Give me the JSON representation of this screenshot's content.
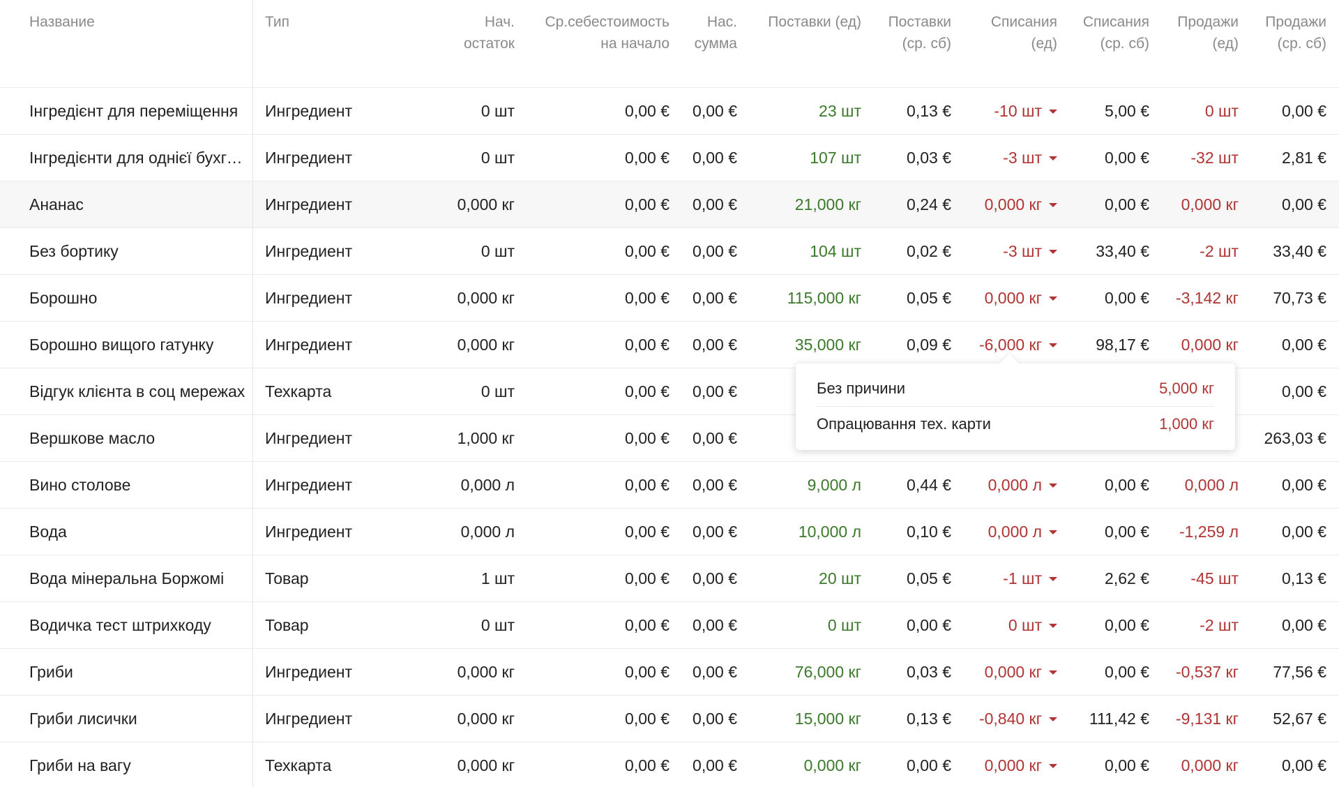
{
  "columns": {
    "name": "Название",
    "type": "Тип",
    "start_qty": [
      "Нач.",
      "остаток"
    ],
    "avg_cost": [
      "Ср.себестоимость",
      "на начало"
    ],
    "start_sum": [
      "Нас.",
      "сумма"
    ],
    "supplies_qty": [
      "Поставки (ед)",
      ""
    ],
    "supplies_cost": [
      "Поставки",
      "(ср. сб)"
    ],
    "writeoffs_qty": [
      "Списания",
      "(ед)"
    ],
    "writeoffs_cost": [
      "Списания",
      "(ср. сб)"
    ],
    "sales_qty": [
      "Продажи",
      "(ед)"
    ],
    "sales_cost": [
      "Продажи",
      "(ср. сб)"
    ]
  },
  "rows": [
    {
      "name": "Інгредієнт для переміщення",
      "type": "Ингредиент",
      "start_qty": "0 шт",
      "avg_cost": "0,00 €",
      "start_sum": "0,00 €",
      "supplies_qty": "23 шт",
      "supplies_cost": "0,13 €",
      "writeoffs_qty": "-10 шт",
      "writeoffs_cost": "5,00 €",
      "sales_qty": "0 шт",
      "sales_cost": "0,00 €"
    },
    {
      "name": "Інгредієнти для однієї бухгалтерії",
      "type": "Ингредиент",
      "start_qty": "0 шт",
      "avg_cost": "0,00 €",
      "start_sum": "0,00 €",
      "supplies_qty": "107 шт",
      "supplies_cost": "0,03 €",
      "writeoffs_qty": "-3 шт",
      "writeoffs_cost": "0,00 €",
      "sales_qty": "-32 шт",
      "sales_cost": "2,81 €"
    },
    {
      "name": "Ананас",
      "type": "Ингредиент",
      "start_qty": "0,000 кг",
      "avg_cost": "0,00 €",
      "start_sum": "0,00 €",
      "supplies_qty": "21,000 кг",
      "supplies_cost": "0,24 €",
      "writeoffs_qty": "0,000 кг",
      "writeoffs_cost": "0,00 €",
      "sales_qty": "0,000 кг",
      "sales_cost": "0,00 €"
    },
    {
      "name": "Без бортику",
      "type": "Ингредиент",
      "start_qty": "0 шт",
      "avg_cost": "0,00 €",
      "start_sum": "0,00 €",
      "supplies_qty": "104 шт",
      "supplies_cost": "0,02 €",
      "writeoffs_qty": "-3 шт",
      "writeoffs_cost": "33,40 €",
      "sales_qty": "-2 шт",
      "sales_cost": "33,40 €"
    },
    {
      "name": "Борошно",
      "type": "Ингредиент",
      "start_qty": "0,000 кг",
      "avg_cost": "0,00 €",
      "start_sum": "0,00 €",
      "supplies_qty": "115,000 кг",
      "supplies_cost": "0,05 €",
      "writeoffs_qty": "0,000 кг",
      "writeoffs_cost": "0,00 €",
      "sales_qty": "-3,142 кг",
      "sales_cost": "70,73 €"
    },
    {
      "name": "Борошно вищого гатунку",
      "type": "Ингредиент",
      "start_qty": "0,000 кг",
      "avg_cost": "0,00 €",
      "start_sum": "0,00 €",
      "supplies_qty": "35,000 кг",
      "supplies_cost": "0,09 €",
      "writeoffs_qty": "-6,000 кг",
      "writeoffs_cost": "98,17 €",
      "sales_qty": "0,000 кг",
      "sales_cost": "0,00 €"
    },
    {
      "name": "Відгук клієнта в соц мережах",
      "type": "Техкарта",
      "start_qty": "0 шт",
      "avg_cost": "0,00 €",
      "start_sum": "0,00 €",
      "supplies_qty": "",
      "supplies_cost": "",
      "writeoffs_qty": "",
      "writeoffs_cost": "",
      "sales_qty": "",
      "sales_cost": "0,00 €"
    },
    {
      "name": "Вершкове масло",
      "type": "Ингредиент",
      "start_qty": "1,000 кг",
      "avg_cost": "0,00 €",
      "start_sum": "0,00 €",
      "supplies_qty": "",
      "supplies_cost": "",
      "writeoffs_qty": "",
      "writeoffs_cost": "",
      "sales_qty": "",
      "sales_cost": "263,03 €"
    },
    {
      "name": "Вино столове",
      "type": "Ингредиент",
      "start_qty": "0,000 л",
      "avg_cost": "0,00 €",
      "start_sum": "0,00 €",
      "supplies_qty": "9,000 л",
      "supplies_cost": "0,44 €",
      "writeoffs_qty": "0,000 л",
      "writeoffs_cost": "0,00 €",
      "sales_qty": "0,000 л",
      "sales_cost": "0,00 €"
    },
    {
      "name": "Вода",
      "type": "Ингредиент",
      "start_qty": "0,000 л",
      "avg_cost": "0,00 €",
      "start_sum": "0,00 €",
      "supplies_qty": "10,000 л",
      "supplies_cost": "0,10 €",
      "writeoffs_qty": "0,000 л",
      "writeoffs_cost": "0,00 €",
      "sales_qty": "-1,259 л",
      "sales_cost": "0,00 €"
    },
    {
      "name": "Вода мінеральна Боржомі",
      "type": "Товар",
      "start_qty": "1 шт",
      "avg_cost": "0,00 €",
      "start_sum": "0,00 €",
      "supplies_qty": "20 шт",
      "supplies_cost": "0,05 €",
      "writeoffs_qty": "-1 шт",
      "writeoffs_cost": "2,62 €",
      "sales_qty": "-45 шт",
      "sales_cost": "0,13 €"
    },
    {
      "name": "Водичка тест штрихкоду",
      "type": "Товар",
      "start_qty": "0 шт",
      "avg_cost": "0,00 €",
      "start_sum": "0,00 €",
      "supplies_qty": "0 шт",
      "supplies_cost": "0,00 €",
      "writeoffs_qty": "0 шт",
      "writeoffs_cost": "0,00 €",
      "sales_qty": "-2 шт",
      "sales_cost": "0,00 €"
    },
    {
      "name": "Гриби",
      "type": "Ингредиент",
      "start_qty": "0,000 кг",
      "avg_cost": "0,00 €",
      "start_sum": "0,00 €",
      "supplies_qty": "76,000 кг",
      "supplies_cost": "0,03 €",
      "writeoffs_qty": "0,000 кг",
      "writeoffs_cost": "0,00 €",
      "sales_qty": "-0,537 кг",
      "sales_cost": "77,56 €"
    },
    {
      "name": "Гриби лисички",
      "type": "Ингредиент",
      "start_qty": "0,000 кг",
      "avg_cost": "0,00 €",
      "start_sum": "0,00 €",
      "supplies_qty": "15,000 кг",
      "supplies_cost": "0,13 €",
      "writeoffs_qty": "-0,840 кг",
      "writeoffs_cost": "111,42 €",
      "sales_qty": "-9,131 кг",
      "sales_cost": "52,67 €"
    },
    {
      "name": "Гриби на вагу",
      "type": "Техкарта",
      "start_qty": "0,000 кг",
      "avg_cost": "0,00 €",
      "start_sum": "0,00 €",
      "supplies_qty": "0,000 кг",
      "supplies_cost": "0,00 €",
      "writeoffs_qty": "0,000 кг",
      "writeoffs_cost": "0,00 €",
      "sales_qty": "0,000 кг",
      "sales_cost": "0,00 €"
    }
  ],
  "popover": {
    "items": [
      {
        "label": "Без причини",
        "value": "5,000 кг"
      },
      {
        "label": "Опрацювання тех. карти",
        "value": "1,000 кг"
      }
    ]
  },
  "colors": {
    "positive": "#3a7a2a",
    "negative": "#b03434",
    "header_text": "#8a8a8a"
  }
}
